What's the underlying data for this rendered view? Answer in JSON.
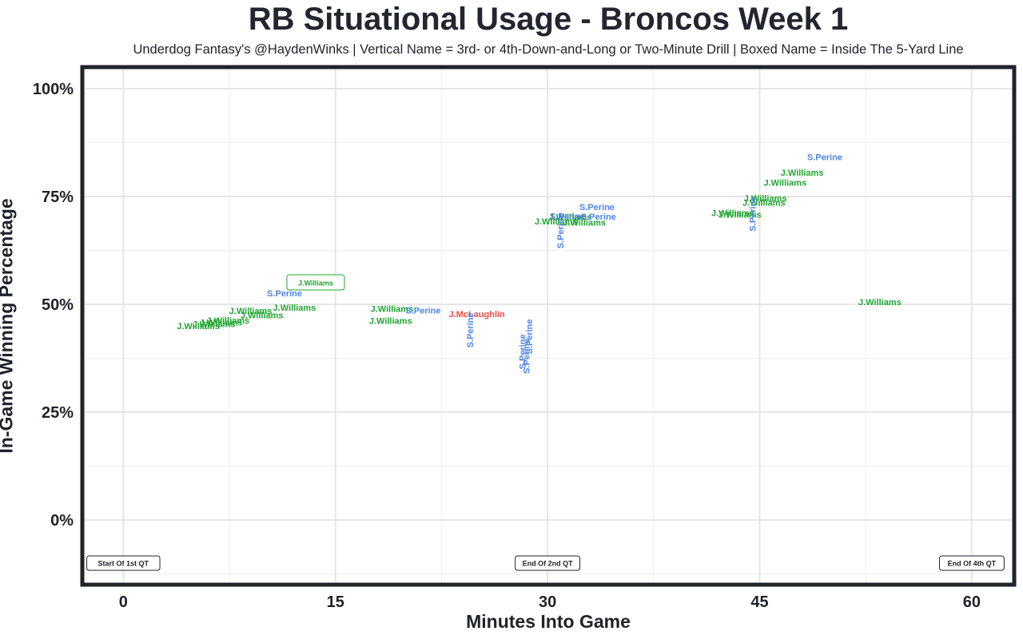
{
  "colors": {
    "J.Williams": "#21a532",
    "S.Perine": "#4f84e6",
    "J.McLaughlin": "#e8524a",
    "frame": "#1f232a",
    "grid": "#e6e6e6"
  },
  "chart_data": {
    "type": "scatter",
    "title": "RB Situational Usage - Broncos Week 1",
    "subtitle": "Underdog Fantasy's @HaydenWinks | Vertical Name = 3rd- or 4th-Down-and-Long or Two-Minute Drill | Boxed Name = Inside The 5-Yard Line",
    "xlabel": "Minutes Into Game",
    "ylabel": "In-Game Winning Percentage",
    "xlim": [
      -2.9,
      63
    ],
    "ylim": [
      -15,
      105
    ],
    "x_ticks": [
      0,
      15,
      30,
      45,
      60
    ],
    "x_tick_labels": [
      "0",
      "15",
      "30",
      "45",
      "60"
    ],
    "y_ticks": [
      0,
      25,
      50,
      75,
      100
    ],
    "y_tick_labels": [
      "0%",
      "25%",
      "50%",
      "75%",
      "100%"
    ],
    "grid": true,
    "quarter_markers": [
      {
        "x": 0,
        "y": -10,
        "label": "Start Of 1st QT"
      },
      {
        "x": 30,
        "y": -10,
        "label": "End Of 2nd QT"
      },
      {
        "x": 60,
        "y": -10,
        "label": "End Of 4th QT"
      }
    ],
    "points": [
      {
        "player": "J.Williams",
        "x": 5.3,
        "y": 45.0,
        "style": "normal"
      },
      {
        "player": "J.Williams",
        "x": 6.4,
        "y": 45.5,
        "style": "normal"
      },
      {
        "player": "J.Williams",
        "x": 6.9,
        "y": 45.8,
        "style": "normal"
      },
      {
        "player": "J.Williams",
        "x": 7.4,
        "y": 46.3,
        "style": "normal"
      },
      {
        "player": "J.Williams",
        "x": 9.0,
        "y": 48.5,
        "style": "normal"
      },
      {
        "player": "J.Williams",
        "x": 9.8,
        "y": 47.5,
        "style": "normal"
      },
      {
        "player": "J.Williams",
        "x": 12.1,
        "y": 49.3,
        "style": "normal"
      },
      {
        "player": "S.Perine",
        "x": 11.4,
        "y": 52.6,
        "style": "normal"
      },
      {
        "player": "J.Williams",
        "x": 13.6,
        "y": 55.0,
        "style": "boxed"
      },
      {
        "player": "J.Williams",
        "x": 19.0,
        "y": 49.0,
        "style": "normal"
      },
      {
        "player": "S.Perine",
        "x": 21.2,
        "y": 48.6,
        "style": "normal"
      },
      {
        "player": "J.Williams",
        "x": 18.9,
        "y": 46.2,
        "style": "normal"
      },
      {
        "player": "J.McLaughlin",
        "x": 25.0,
        "y": 47.8,
        "style": "normal"
      },
      {
        "player": "S.Perine",
        "x": 24.5,
        "y": 44.0,
        "style": "vertical"
      },
      {
        "player": "S.Perine",
        "x": 28.2,
        "y": 39.0,
        "style": "vertical"
      },
      {
        "player": "S.Perine",
        "x": 28.5,
        "y": 38.0,
        "style": "vertical"
      },
      {
        "player": "S.Perine",
        "x": 28.7,
        "y": 42.5,
        "style": "vertical"
      },
      {
        "player": "J.Williams",
        "x": 30.6,
        "y": 69.3,
        "style": "normal"
      },
      {
        "player": "J.Williams",
        "x": 31.6,
        "y": 70.3,
        "style": "normal"
      },
      {
        "player": "J.Williams",
        "x": 32.6,
        "y": 69.0,
        "style": "normal"
      },
      {
        "player": "S.Perine",
        "x": 31.4,
        "y": 70.5,
        "style": "normal"
      },
      {
        "player": "S.Perine",
        "x": 33.6,
        "y": 70.4,
        "style": "normal"
      },
      {
        "player": "S.Perine",
        "x": 33.5,
        "y": 72.6,
        "style": "normal"
      },
      {
        "player": "S.Perine",
        "x": 30.9,
        "y": 67.0,
        "style": "vertical"
      },
      {
        "player": "J.Williams",
        "x": 43.1,
        "y": 71.2,
        "style": "normal"
      },
      {
        "player": "J.Williams",
        "x": 43.6,
        "y": 70.8,
        "style": "normal"
      },
      {
        "player": "J.Williams",
        "x": 45.4,
        "y": 74.6,
        "style": "normal"
      },
      {
        "player": "J.Williams",
        "x": 45.3,
        "y": 73.6,
        "style": "normal"
      },
      {
        "player": "J.Williams",
        "x": 46.8,
        "y": 78.2,
        "style": "normal"
      },
      {
        "player": "J.Williams",
        "x": 48.0,
        "y": 80.6,
        "style": "normal"
      },
      {
        "player": "S.Perine",
        "x": 49.6,
        "y": 84.2,
        "style": "normal"
      },
      {
        "player": "S.Perine",
        "x": 44.5,
        "y": 71.0,
        "style": "vertical"
      },
      {
        "player": "J.Williams",
        "x": 53.5,
        "y": 50.6,
        "style": "normal"
      }
    ]
  }
}
